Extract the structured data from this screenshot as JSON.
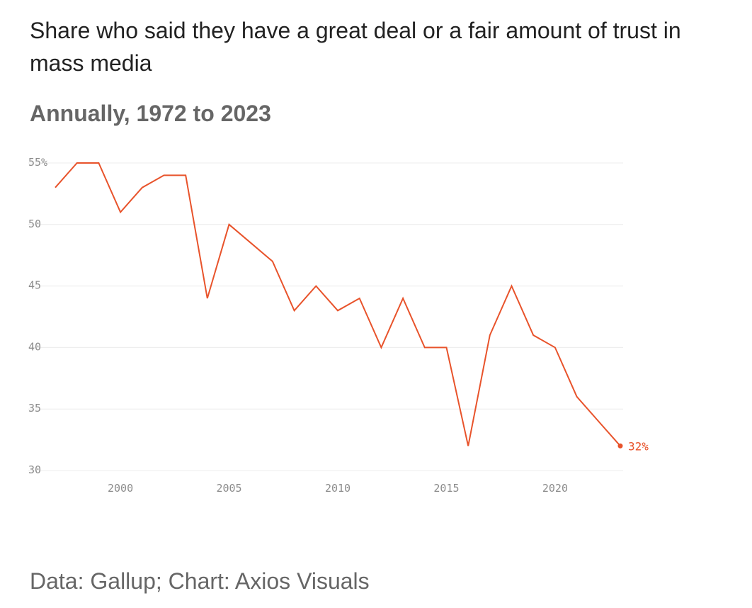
{
  "title": "Share who said they have a great deal or a fair amount of trust in mass media",
  "subtitle": "Annually, 1972 to 2023",
  "source": "Data: Gallup; Chart: Axios Visuals",
  "colors": {
    "line": "#e8532b",
    "grid": "#ececec",
    "tick": "#8c8c8c"
  },
  "chart_data": {
    "type": "line",
    "title": "Share who said they have a great deal or a fair amount of trust in mass media",
    "subtitle": "Annually, 1972 to 2023",
    "xlabel": "",
    "ylabel": "",
    "x": [
      1997,
      1998,
      1999,
      2000,
      2001,
      2002,
      2003,
      2004,
      2005,
      2006,
      2007,
      2008,
      2009,
      2010,
      2011,
      2012,
      2013,
      2014,
      2015,
      2016,
      2017,
      2018,
      2019,
      2020,
      2021,
      2022,
      2023
    ],
    "values": [
      53,
      55,
      55,
      51,
      53,
      54,
      54,
      44,
      50,
      48.5,
      47,
      43,
      45,
      43,
      44,
      40,
      44,
      40,
      40,
      32,
      41,
      45,
      41,
      40,
      36,
      34,
      32
    ],
    "xlim": [
      1997,
      2023
    ],
    "ylim": [
      30,
      55
    ],
    "x_ticks": [
      2000,
      2005,
      2010,
      2015,
      2020
    ],
    "x_tick_labels": [
      "2000",
      "2005",
      "2010",
      "2015",
      "2020"
    ],
    "y_ticks": [
      30,
      35,
      40,
      45,
      50,
      55
    ],
    "y_tick_labels": [
      "30",
      "35",
      "40",
      "45",
      "50",
      "55%"
    ],
    "grid": true,
    "end_label": "32%"
  }
}
